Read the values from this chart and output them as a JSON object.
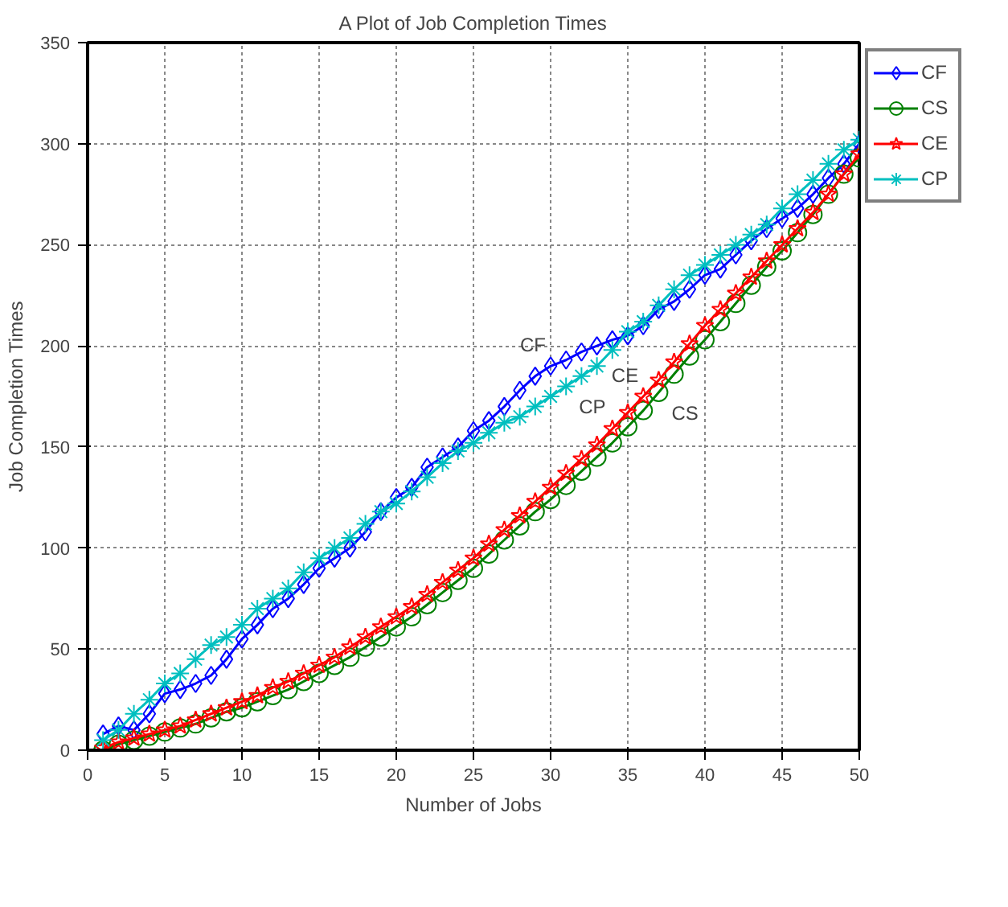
{
  "chart_data": {
    "type": "line",
    "title": "A Plot of Job Completion Times",
    "xlabel": "Number of Jobs",
    "ylabel": "Job Completion Times",
    "x": [
      1,
      2,
      3,
      4,
      5,
      6,
      7,
      8,
      9,
      10,
      11,
      12,
      13,
      14,
      15,
      16,
      17,
      18,
      19,
      20,
      21,
      22,
      23,
      24,
      25,
      26,
      27,
      28,
      29,
      30,
      31,
      32,
      33,
      34,
      35,
      36,
      37,
      38,
      39,
      40,
      41,
      42,
      43,
      44,
      45,
      46,
      47,
      48,
      49,
      50
    ],
    "series": [
      {
        "name": "CF",
        "color": "#0000ff",
        "marker": "diamond",
        "values": [
          8,
          12,
          10,
          18,
          28,
          30,
          33,
          37,
          45,
          55,
          62,
          70,
          75,
          82,
          90,
          95,
          100,
          108,
          118,
          125,
          130,
          140,
          145,
          150,
          158,
          163,
          170,
          178,
          185,
          190,
          193,
          197,
          200,
          203,
          205,
          210,
          218,
          222,
          228,
          235,
          238,
          245,
          252,
          258,
          263,
          268,
          275,
          283,
          290,
          300
        ]
      },
      {
        "name": "CS",
        "color": "#008000",
        "marker": "circle",
        "values": [
          0,
          3,
          5,
          7,
          9,
          11,
          13,
          16,
          19,
          21,
          24,
          27,
          30,
          34,
          38,
          42,
          46,
          51,
          56,
          61,
          66,
          72,
          78,
          84,
          90,
          97,
          104,
          111,
          118,
          124,
          131,
          138,
          145,
          152,
          160,
          168,
          177,
          186,
          195,
          203,
          212,
          221,
          230,
          239,
          247,
          256,
          265,
          275,
          285,
          293
        ]
      },
      {
        "name": "CE",
        "color": "#ff0000",
        "marker": "star",
        "values": [
          1,
          4,
          6,
          8,
          10,
          12,
          15,
          18,
          21,
          24,
          27,
          31,
          34,
          38,
          42,
          46,
          51,
          56,
          61,
          66,
          71,
          77,
          83,
          89,
          95,
          102,
          109,
          116,
          123,
          130,
          137,
          144,
          151,
          159,
          167,
          175,
          183,
          192,
          201,
          210,
          218,
          226,
          234,
          242,
          250,
          258,
          266,
          275,
          285,
          295
        ]
      },
      {
        "name": "CP",
        "color": "#00bfbf",
        "marker": "cross",
        "values": [
          5,
          10,
          18,
          25,
          33,
          38,
          45,
          52,
          56,
          62,
          70,
          75,
          80,
          88,
          95,
          100,
          105,
          112,
          118,
          122,
          128,
          135,
          142,
          148,
          152,
          157,
          162,
          165,
          170,
          175,
          180,
          185,
          190,
          198,
          207,
          212,
          220,
          228,
          235,
          240,
          245,
          250,
          255,
          260,
          268,
          275,
          282,
          290,
          297,
          302
        ]
      }
    ],
    "annotations": [
      {
        "text": "CF",
        "x": 30,
        "y": 190
      },
      {
        "text": "CP",
        "x": 31,
        "y": 180
      },
      {
        "text": "CE",
        "x": 36,
        "y": 175
      },
      {
        "text": "CS",
        "x": 37,
        "y": 177
      }
    ],
    "xlim": [
      0,
      50
    ],
    "ylim": [
      0,
      350
    ],
    "xticks": [
      0,
      5,
      10,
      15,
      20,
      25,
      30,
      35,
      40,
      45,
      50
    ],
    "yticks": [
      0,
      50,
      100,
      150,
      200,
      250,
      300,
      350
    ],
    "grid": true,
    "legend": "top right",
    "line_style": "solid"
  }
}
